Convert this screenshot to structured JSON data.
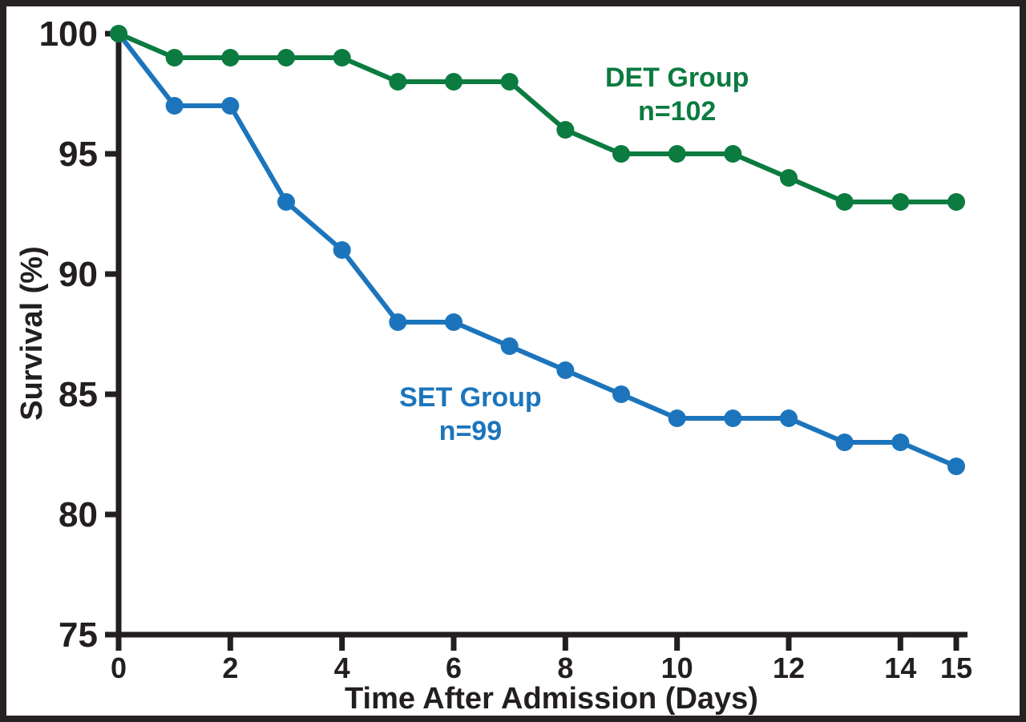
{
  "chart_data": {
    "type": "line",
    "title": "",
    "xlabel": "Time After Admission (Days)",
    "ylabel": "Survival (%)",
    "xlim": [
      0,
      15
    ],
    "ylim": [
      75,
      100
    ],
    "x_ticks": [
      0,
      2,
      4,
      6,
      8,
      10,
      12,
      14,
      15
    ],
    "y_ticks": [
      75,
      80,
      85,
      90,
      95,
      100
    ],
    "grid": false,
    "legend_position": "inline-annotations",
    "x": [
      0,
      1,
      2,
      3,
      4,
      5,
      6,
      7,
      8,
      9,
      10,
      11,
      12,
      13,
      14,
      15
    ],
    "series": [
      {
        "name": "DET Group",
        "annotation_lines": [
          "DET Group",
          "n=102"
        ],
        "color_key": "det_green",
        "values": [
          100,
          99,
          99,
          99,
          99,
          98,
          98,
          98,
          96,
          95,
          95,
          95,
          94,
          93,
          93,
          93
        ],
        "label_anchor": {
          "x": 10.0,
          "y": 97.8
        }
      },
      {
        "name": "SET Group",
        "annotation_lines": [
          "SET Group",
          "n=99"
        ],
        "color_key": "set_blue",
        "values": [
          100,
          97,
          97,
          93,
          91,
          88,
          88,
          87,
          86,
          85,
          84,
          84,
          84,
          83,
          83,
          82
        ],
        "label_anchor": {
          "x": 6.3,
          "y": 84.5
        }
      }
    ]
  },
  "colors": {
    "det_green": "#0B7B40",
    "set_blue": "#1C75BC",
    "axis": "#231F20",
    "background": "#FFFFFF",
    "frame_border": "#262122"
  }
}
